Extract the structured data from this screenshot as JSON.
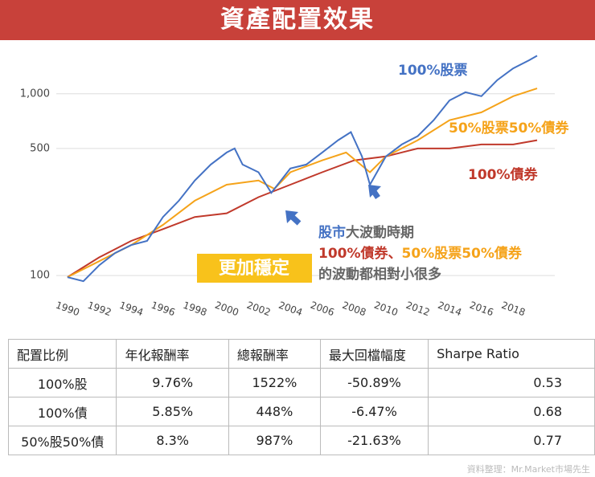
{
  "header": {
    "title": "資產配置效果"
  },
  "chart_data": {
    "type": "line",
    "log_scale": true,
    "grid": true,
    "xlim": [
      1989.7,
      2019.7
    ],
    "xticks": [
      1990,
      1992,
      1994,
      1996,
      1998,
      2000,
      2002,
      2004,
      2006,
      2008,
      2010,
      2012,
      2014,
      2016,
      2018
    ],
    "ylim": [
      80,
      1800
    ],
    "yticks": [
      100,
      500,
      {
        "value": 1000,
        "label": "1,000"
      }
    ],
    "series": [
      {
        "name": "100%股票",
        "color": "#4472c4",
        "x": [
          1990,
          1991,
          1992,
          1993,
          1994,
          1995,
          1996,
          1997,
          1998,
          1999,
          2000,
          2000.5,
          2001,
          2002,
          2002.8,
          2003,
          2004,
          2005,
          2006,
          2007,
          2007.8,
          2008.5,
          2009,
          2010,
          2011,
          2012,
          2013,
          2014,
          2015,
          2016,
          2017,
          2018,
          2019,
          2019.5
        ],
        "values": [
          98,
          93,
          114,
          133,
          147,
          155,
          210,
          258,
          333,
          408,
          475,
          500,
          408,
          370,
          285,
          300,
          388,
          408,
          475,
          555,
          615,
          452,
          316,
          452,
          526,
          585,
          715,
          920,
          1020,
          970,
          1190,
          1380,
          1530,
          1620
        ]
      },
      {
        "name": "50%股票50%債券",
        "color": "#f5a31a",
        "x": [
          1990,
          1992,
          1994,
          1996,
          1998,
          2000,
          2002,
          2003,
          2004,
          2006,
          2007.5,
          2009,
          2010,
          2012,
          2014,
          2016,
          2018,
          2019.5
        ],
        "values": [
          98,
          120,
          147,
          190,
          258,
          316,
          333,
          300,
          370,
          430,
          475,
          370,
          452,
          555,
          715,
          790,
          970,
          1070
        ]
      },
      {
        "name": "100%債券",
        "color": "#c0392b",
        "x": [
          1990,
          1992,
          1994,
          1996,
          1998,
          2000,
          2002,
          2004,
          2006,
          2008,
          2010,
          2012,
          2014,
          2016,
          2018,
          2019.5
        ],
        "values": [
          98,
          126,
          155,
          180,
          210,
          220,
          270,
          316,
          370,
          430,
          452,
          500,
          500,
          526,
          526,
          555
        ]
      }
    ],
    "badge": "更加穩定",
    "annotation": [
      [
        {
          "text": "股市",
          "color": "#4472c4"
        },
        {
          "text": "大波動時期",
          "color": "#666666"
        }
      ],
      [
        {
          "text": "100%債券、",
          "color": "#c0392b"
        },
        {
          "text": "50%股票50%債券",
          "color": "#f5a31a"
        }
      ],
      [
        {
          "text": "的波動都相對小很多",
          "color": "#666666"
        }
      ]
    ]
  },
  "table": {
    "header": [
      "配置比例",
      "年化報酬率",
      "總報酬率",
      "最大回檔幅度",
      "Sharpe Ratio"
    ],
    "rows": [
      [
        "100%股",
        "9.76%",
        "1522%",
        "-50.89%",
        "0.53"
      ],
      [
        "100%債",
        "5.85%",
        "448%",
        "-6.47%",
        "0.68"
      ],
      [
        "50%股50%債",
        "8.3%",
        "987%",
        "-21.63%",
        "0.77"
      ]
    ]
  },
  "source": "資料整理：Mr.Market市場先生"
}
